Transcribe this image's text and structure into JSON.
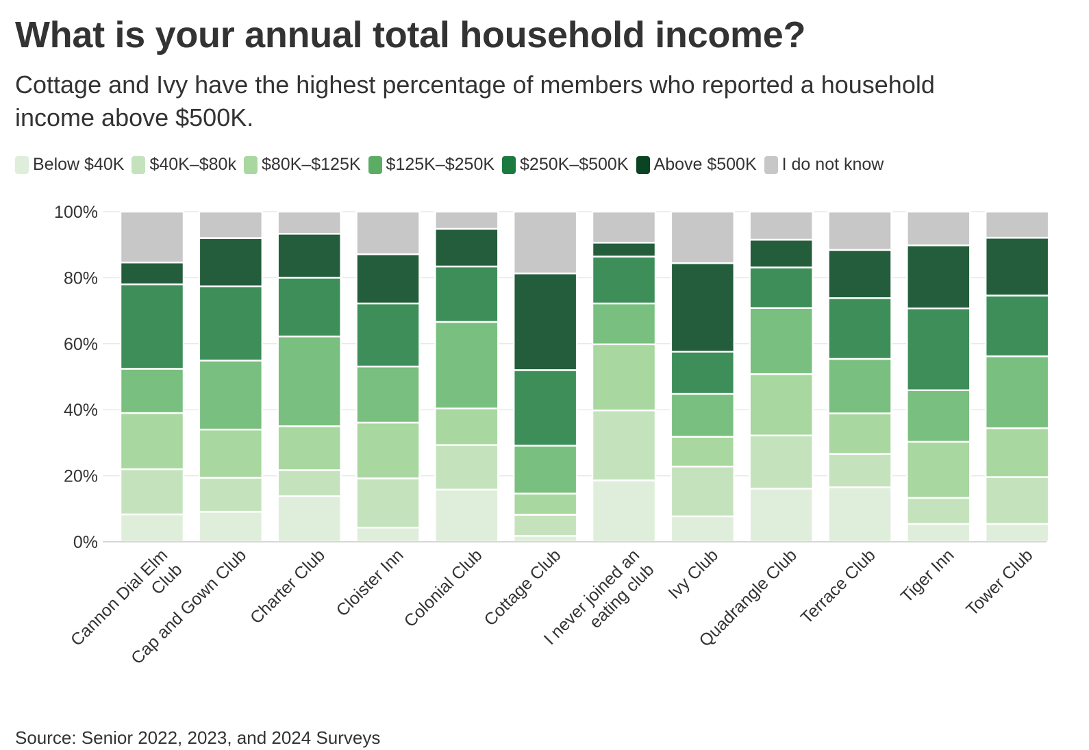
{
  "chart_data": {
    "type": "bar",
    "stacked": true,
    "title": "What is your annual total household income?",
    "subtitle": "Cottage and Ivy have the highest percentage of members who reported a household income above $500K.",
    "source": "Source: Senior 2022, 2023, and 2024 Surveys",
    "ylim": [
      0,
      100
    ],
    "y_ticks": [
      "0%",
      "20%",
      "40%",
      "60%",
      "80%",
      "100%"
    ],
    "categories": [
      "Cannon Dial Elm Club",
      "Cap and Gown Club",
      "Charter Club",
      "Cloister Inn",
      "Colonial Club",
      "Cottage Club",
      "I never joined an eating club",
      "Ivy Club",
      "Quadrangle Club",
      "Terrace Club",
      "Tiger Inn",
      "Tower Club"
    ],
    "category_lines": [
      [
        "Cannon Dial Elm",
        "Club"
      ],
      [
        "Cap and Gown Club"
      ],
      [
        "Charter Club"
      ],
      [
        "Cloister Inn"
      ],
      [
        "Colonial Club"
      ],
      [
        "Cottage Club"
      ],
      [
        "I never joined an",
        "eating club"
      ],
      [
        "Ivy Club"
      ],
      [
        "Quadrangle Club"
      ],
      [
        "Terrace Club"
      ],
      [
        "Tiger Inn"
      ],
      [
        "Tower Club"
      ]
    ],
    "series": [
      {
        "name": "Below $40K",
        "color": "#dfeeda",
        "values": [
          8.3,
          9.1,
          13.8,
          4.3,
          15.8,
          1.8,
          18.6,
          7.7,
          16.1,
          16.5,
          5.4,
          5.4
        ]
      },
      {
        "name": "$40K–$80k",
        "color": "#c4e3bd",
        "values": [
          13.7,
          10.3,
          7.9,
          14.9,
          13.5,
          6.4,
          21.2,
          15.1,
          16.1,
          10.1,
          7.9,
          14.2
        ]
      },
      {
        "name": "$80K–$125K",
        "color": "#a8d7a0",
        "values": [
          17.0,
          14.6,
          13.3,
          16.9,
          11.1,
          6.4,
          20.0,
          9.0,
          18.6,
          12.3,
          17.0,
          14.8
        ]
      },
      {
        "name": "$125K–$250K",
        "color": "#79bf7f",
        "values": [
          13.4,
          20.9,
          27.2,
          17.0,
          26.2,
          14.5,
          12.4,
          13.0,
          20.0,
          16.5,
          15.6,
          21.8
        ]
      },
      {
        "name": "$250K–$500K",
        "color": "#3d8e58",
        "values": [
          25.6,
          22.5,
          17.8,
          19.1,
          16.8,
          22.9,
          14.2,
          12.8,
          12.3,
          18.4,
          24.8,
          18.4
        ]
      },
      {
        "name": "Above $500K",
        "color": "#235d3b",
        "values": [
          6.6,
          14.6,
          13.3,
          14.9,
          11.4,
          29.3,
          4.2,
          26.8,
          8.4,
          14.6,
          19.1,
          17.5
        ]
      },
      {
        "name": "I do not know",
        "color": "#c8c7c7",
        "values": [
          15.4,
          8.0,
          6.7,
          12.9,
          5.2,
          18.7,
          9.4,
          15.6,
          8.5,
          11.6,
          10.2,
          7.9
        ]
      }
    ],
    "legend_colors": [
      "#dfeeda",
      "#c4e3bd",
      "#a8d7a0",
      "#5aad62",
      "#1c7a3e",
      "#0a4422",
      "#c8c7c7"
    ]
  }
}
